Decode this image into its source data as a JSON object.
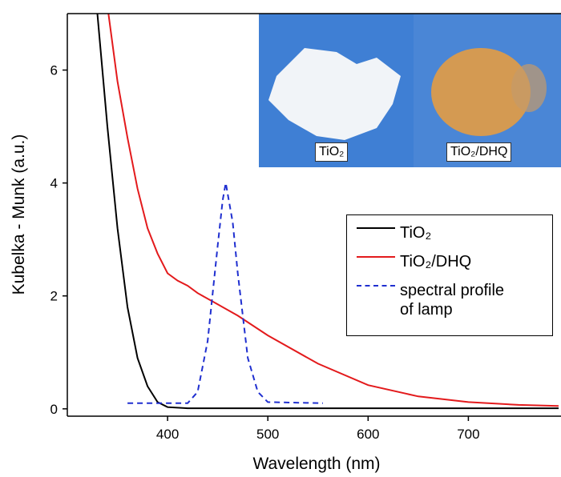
{
  "chart_data": {
    "type": "line",
    "x_label": "Wavelength (nm)",
    "y_label": "Kubelka - Munk (a.u.)",
    "annotations": [
      "TiO₂",
      "TiO₂/DHQ"
    ],
    "xlim": [
      300,
      790
    ],
    "ylim": [
      -0.13,
      7
    ],
    "xticks": [
      400,
      500,
      600,
      700
    ],
    "yticks": [
      0,
      2,
      4,
      6
    ],
    "series": [
      {
        "name": "TiO₂",
        "color": "#000000",
        "dash": false,
        "x": [
          330,
          340,
          350,
          360,
          370,
          380,
          390,
          400,
          420,
          450,
          500,
          600,
          700,
          790
        ],
        "values": [
          7,
          5.0,
          3.2,
          1.8,
          0.9,
          0.4,
          0.12,
          0.03,
          0.01,
          0.01,
          0.01,
          0.01,
          0.01,
          0.01
        ]
      },
      {
        "name": "TiO₂/DHQ",
        "color": "#e31a1c",
        "dash": false,
        "x": [
          341,
          350,
          360,
          370,
          380,
          390,
          400,
          410,
          420,
          430,
          450,
          470,
          500,
          550,
          600,
          650,
          700,
          750,
          790
        ],
        "values": [
          7,
          5.8,
          4.8,
          3.9,
          3.2,
          2.75,
          2.4,
          2.27,
          2.18,
          2.05,
          1.85,
          1.65,
          1.3,
          0.8,
          0.42,
          0.22,
          0.12,
          0.07,
          0.05
        ]
      },
      {
        "name": "spectral profile of lamp",
        "color": "#1f2fd0",
        "dash": true,
        "x": [
          360,
          420,
          430,
          440,
          450,
          455,
          458,
          465,
          470,
          480,
          490,
          500,
          555
        ],
        "values": [
          0.1,
          0.1,
          0.3,
          1.2,
          2.9,
          3.7,
          4.0,
          3.3,
          2.4,
          0.9,
          0.3,
          0.12,
          0.1
        ]
      }
    ]
  }
}
